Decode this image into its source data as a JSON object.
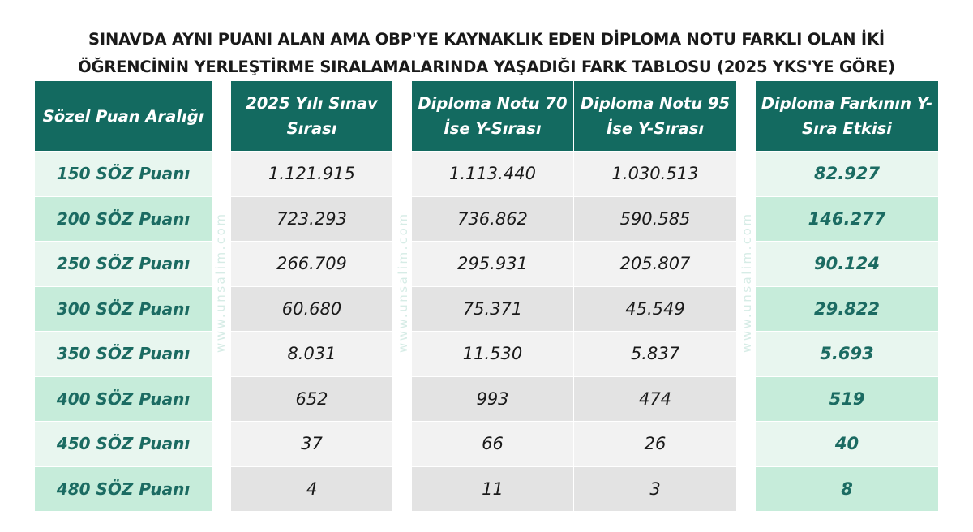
{
  "title": {
    "line1": "SINAVDA AYNI PUANI ALAN AMA OBP'YE KAYNAKLIK EDEN DİPLOMA NOTU FARKLI OLAN İKİ",
    "line2": "ÖĞRENCİNİN YERLEŞTİRME SIRALAMALARINDA YAŞADIĞI FARK TABLOSU (2025 YKS'YE GÖRE)"
  },
  "headers": {
    "range": [
      "Sözel Puan Aralığı"
    ],
    "rank2025": [
      "2025 Yılı Sınav",
      "Sırası"
    ],
    "dip70": [
      "Diploma Notu 70",
      "İse Y-Sırası"
    ],
    "dip95": [
      "Diploma Notu 95",
      "İse Y-Sırası"
    ],
    "effect": [
      "Diploma Farkının Y-",
      "Sıra Etkisi"
    ]
  },
  "rows": [
    {
      "range": "150 SÖZ Puanı",
      "rank2025": "1.121.915",
      "dip70": "1.113.440",
      "dip95": "1.030.513",
      "effect": "82.927"
    },
    {
      "range": "200 SÖZ Puanı",
      "rank2025": "723.293",
      "dip70": "736.862",
      "dip95": "590.585",
      "effect": "146.277"
    },
    {
      "range": "250 SÖZ Puanı",
      "rank2025": "266.709",
      "dip70": "295.931",
      "dip95": "205.807",
      "effect": "90.124"
    },
    {
      "range": "300 SÖZ Puanı",
      "rank2025": "60.680",
      "dip70": "75.371",
      "dip95": "45.549",
      "effect": "29.822"
    },
    {
      "range": "350 SÖZ Puanı",
      "rank2025": "8.031",
      "dip70": "11.530",
      "dip95": "5.837",
      "effect": "5.693"
    },
    {
      "range": "400 SÖZ Puanı",
      "rank2025": "652",
      "dip70": "993",
      "dip95": "474",
      "effect": "519"
    },
    {
      "range": "450 SÖZ Puanı",
      "rank2025": "37",
      "dip70": "66",
      "dip95": "26",
      "effect": "40"
    },
    {
      "range": "480 SÖZ Puanı",
      "rank2025": "4",
      "dip70": "11",
      "dip95": "3",
      "effect": "8"
    }
  ],
  "watermark": "www.unsalim.com",
  "colors": {
    "header_bg": "#136a60",
    "header_text": "#ffffff",
    "label_text": "#1b6b62",
    "green_light": "#e8f6ef",
    "green_dark": "#c6ecda",
    "gray_light": "#f2f2f2",
    "gray_dark": "#e3e3e3"
  }
}
